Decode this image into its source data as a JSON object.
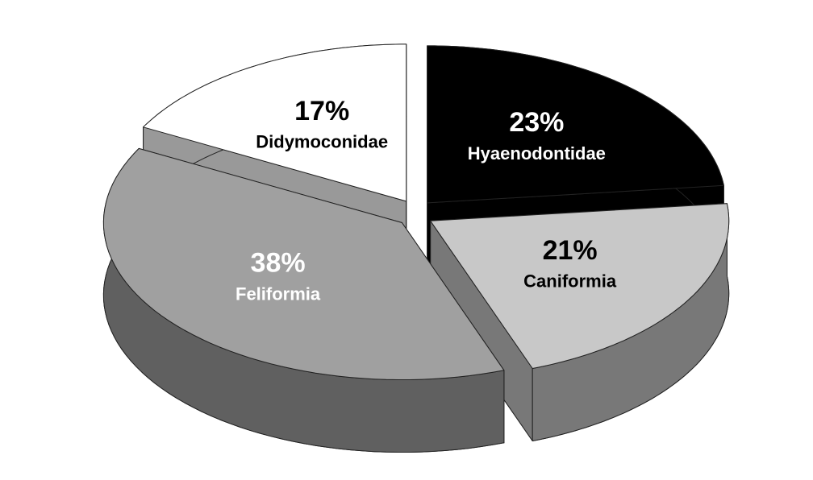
{
  "chart_data": {
    "type": "pie",
    "categories": [
      "Hyaenodontidae",
      "Caniformia",
      "Feliformia",
      "Didymoconidae"
    ],
    "values": [
      23,
      21,
      38,
      17
    ],
    "value_labels": [
      "23%",
      "21%",
      "38%",
      "17%"
    ],
    "colors": [
      "#000000",
      "#c8c8c8",
      "#a0a0a0",
      "#ffffff"
    ]
  }
}
